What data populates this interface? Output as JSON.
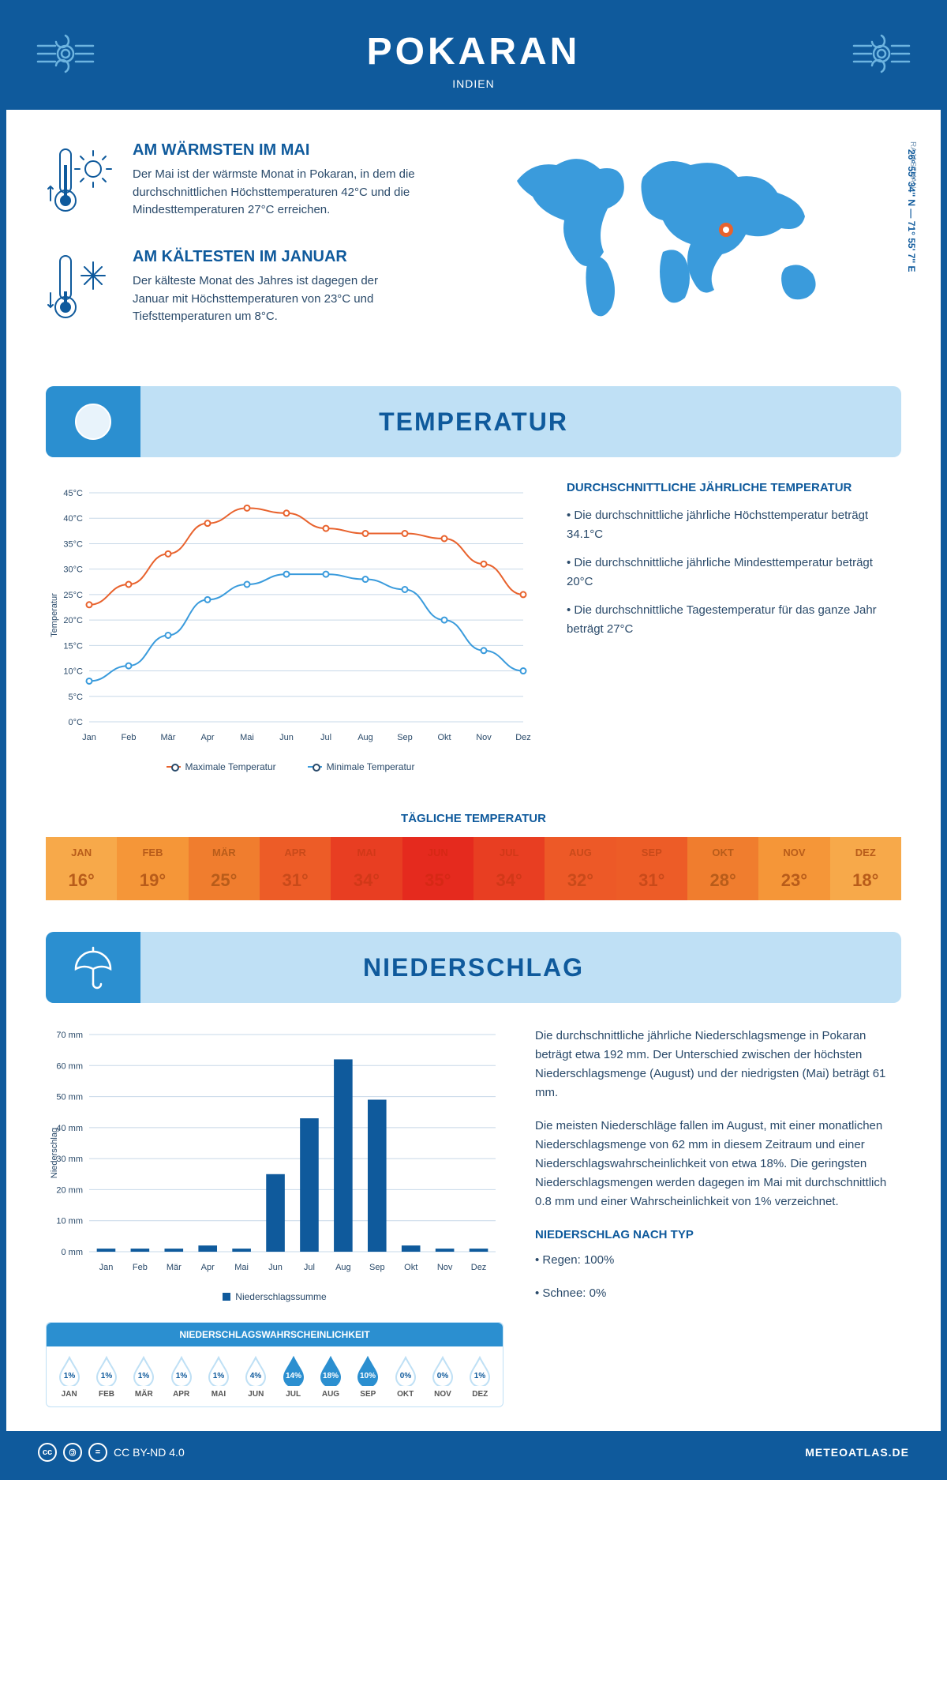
{
  "header": {
    "city": "POKARAN",
    "country": "INDIEN"
  },
  "coords": "26° 55' 34'' N — 71° 55' 7'' E",
  "region": "RAJASTHAN",
  "warm": {
    "title": "AM WÄRMSTEN IM MAI",
    "text": "Der Mai ist der wärmste Monat in Pokaran, in dem die durchschnittlichen Höchsttemperaturen 42°C und die Mindesttemperaturen 27°C erreichen."
  },
  "cold": {
    "title": "AM KÄLTESTEN IM JANUAR",
    "text": "Der kälteste Monat des Jahres ist dagegen der Januar mit Höchsttemperaturen von 23°C und Tiefsttemperaturen um 8°C."
  },
  "sections": {
    "temp": "TEMPERATUR",
    "precip": "NIEDERSCHLAG"
  },
  "months": [
    "Jan",
    "Feb",
    "Mär",
    "Apr",
    "Mai",
    "Jun",
    "Jul",
    "Aug",
    "Sep",
    "Okt",
    "Nov",
    "Dez"
  ],
  "months_uc": [
    "JAN",
    "FEB",
    "MÄR",
    "APR",
    "MAI",
    "JUN",
    "JUL",
    "AUG",
    "SEP",
    "OKT",
    "NOV",
    "DEZ"
  ],
  "temp_chart": {
    "ylabel": "Temperatur",
    "ymin": 0,
    "ymax": 45,
    "ystep": 5,
    "max_series": [
      23,
      27,
      33,
      39,
      42,
      41,
      38,
      37,
      37,
      36,
      31,
      25
    ],
    "min_series": [
      8,
      11,
      17,
      24,
      27,
      29,
      29,
      28,
      26,
      20,
      14,
      10
    ],
    "max_color": "#e8622d",
    "min_color": "#3a9bdc",
    "grid_color": "#c7d8e8",
    "bg": "#ffffff",
    "legend_max": "Maximale Temperatur",
    "legend_min": "Minimale Temperatur"
  },
  "temp_text": {
    "title": "DURCHSCHNITTLICHE JÄHRLICHE TEMPERATUR",
    "b1": "• Die durchschnittliche jährliche Höchsttemperatur beträgt 34.1°C",
    "b2": "• Die durchschnittliche jährliche Mindesttemperatur beträgt 20°C",
    "b3": "• Die durchschnittliche Tagestemperatur für das ganze Jahr beträgt 27°C"
  },
  "daily_title": "TÄGLICHE TEMPERATUR",
  "daily_temps": {
    "values": [
      "16°",
      "19°",
      "25°",
      "31°",
      "34°",
      "35°",
      "34°",
      "32°",
      "31°",
      "28°",
      "23°",
      "18°"
    ],
    "colors": [
      "#f7a94a",
      "#f59638",
      "#f07d2e",
      "#ed5c27",
      "#e83e22",
      "#e52a1e",
      "#e83e22",
      "#ed5927",
      "#ed5c27",
      "#f07d2e",
      "#f59638",
      "#f7a94a"
    ],
    "text_colors": [
      "#b85c1a",
      "#b85c1a",
      "#b85c1a",
      "#c94a1a",
      "#d13818",
      "#d62815",
      "#d13818",
      "#c94a1a",
      "#c94a1a",
      "#b85c1a",
      "#b85c1a",
      "#b85c1a"
    ]
  },
  "precip_chart": {
    "ylabel": "Niederschlag",
    "ymin": 0,
    "ymax": 70,
    "ystep": 10,
    "values": [
      1,
      1,
      1,
      2,
      1,
      25,
      43,
      62,
      49,
      2,
      1,
      1
    ],
    "bar_color": "#0f5a9c",
    "grid_color": "#c7d8e8",
    "legend": "Niederschlagssumme"
  },
  "precip_text": {
    "p1": "Die durchschnittliche jährliche Niederschlagsmenge in Pokaran beträgt etwa 192 mm. Der Unterschied zwischen der höchsten Niederschlagsmenge (August) und der niedrigsten (Mai) beträgt 61 mm.",
    "p2": "Die meisten Niederschläge fallen im August, mit einer monatlichen Niederschlagsmenge von 62 mm in diesem Zeitraum und einer Niederschlagswahrscheinlichkeit von etwa 18%. Die geringsten Niederschlagsmengen werden dagegen im Mai mit durchschnittlich 0.8 mm und einer Wahrscheinlichkeit von 1% verzeichnet.",
    "type_title": "NIEDERSCHLAG NACH TYP",
    "rain": "• Regen: 100%",
    "snow": "• Schnee: 0%"
  },
  "prob": {
    "title": "NIEDERSCHLAGSWAHRSCHEINLICHKEIT",
    "values": [
      "1%",
      "1%",
      "1%",
      "1%",
      "1%",
      "4%",
      "14%",
      "18%",
      "10%",
      "0%",
      "0%",
      "1%"
    ],
    "filled": [
      false,
      false,
      false,
      false,
      false,
      false,
      true,
      true,
      true,
      false,
      false,
      false
    ],
    "fill_color": "#2b8fd0",
    "outline_color": "#bfe0f5"
  },
  "footer": {
    "license": "CC BY-ND 4.0",
    "site": "METEOATLAS.DE"
  }
}
